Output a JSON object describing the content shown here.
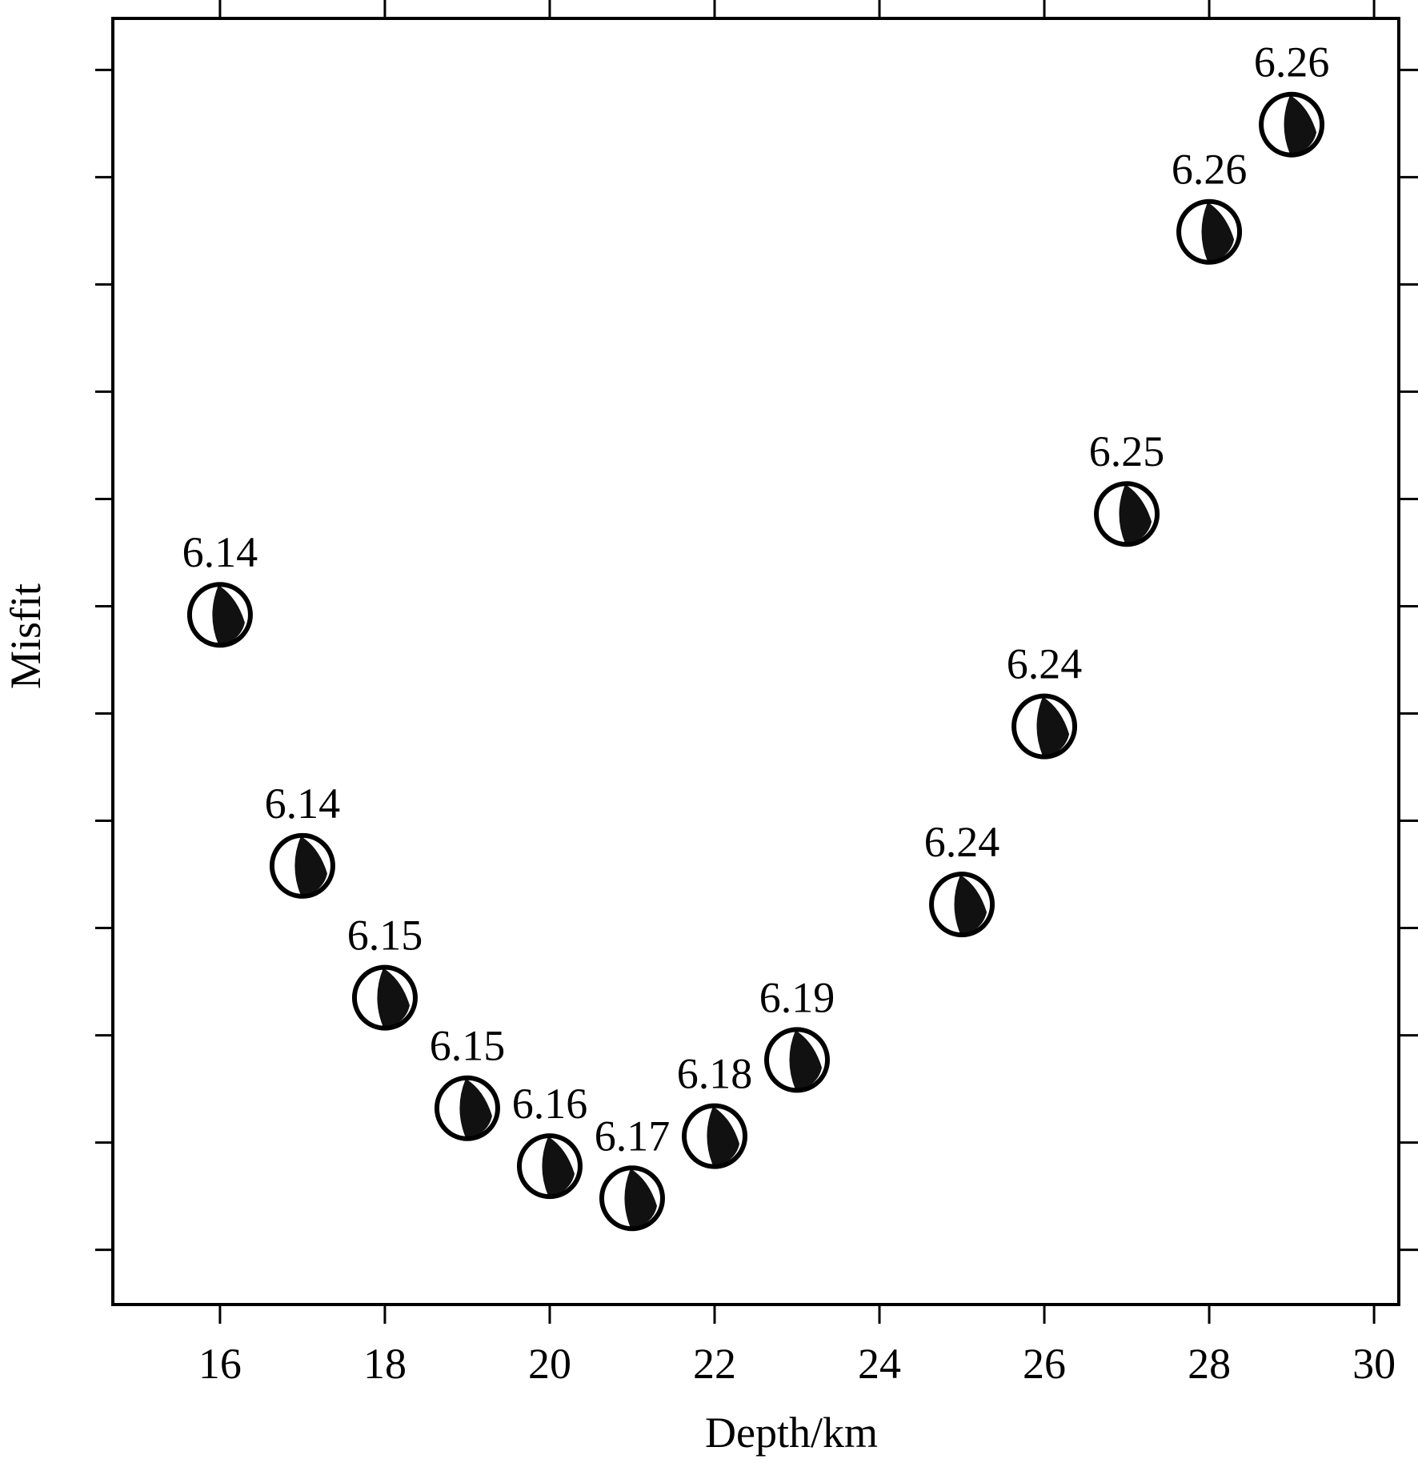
{
  "chart_data": {
    "type": "scatter",
    "title": "",
    "xlabel": "Depth/km",
    "ylabel": "Misfit",
    "xlim": [
      14.7,
      30.3
    ],
    "ylim": [
      -0.51,
      11.48
    ],
    "y_units_note": "relative misfit (unlabeled axis, tick units)",
    "xticks": [
      16,
      18,
      20,
      22,
      24,
      26,
      28,
      30
    ],
    "xtick_labels": [
      "16",
      "18",
      "20",
      "22",
      "24",
      "26",
      "28",
      "30"
    ],
    "yticks": [
      0,
      1,
      2,
      3,
      4,
      5,
      6,
      7,
      8,
      9,
      10,
      11
    ],
    "grid": false,
    "marker": "focal-mechanism-beachball",
    "fill_color": "#111111",
    "points": [
      {
        "x": 16,
        "y": 5.92,
        "label": "6.14"
      },
      {
        "x": 17,
        "y": 3.58,
        "label": "6.14"
      },
      {
        "x": 18,
        "y": 2.35,
        "label": "6.15"
      },
      {
        "x": 19,
        "y": 1.32,
        "label": "6.15"
      },
      {
        "x": 20,
        "y": 0.78,
        "label": "6.16"
      },
      {
        "x": 21,
        "y": 0.48,
        "label": "6.17"
      },
      {
        "x": 22,
        "y": 1.06,
        "label": "6.18"
      },
      {
        "x": 23,
        "y": 1.77,
        "label": "6.19"
      },
      {
        "x": 25,
        "y": 3.22,
        "label": "6.24"
      },
      {
        "x": 26,
        "y": 4.88,
        "label": "6.24"
      },
      {
        "x": 27,
        "y": 6.86,
        "label": "6.25"
      },
      {
        "x": 28,
        "y": 9.49,
        "label": "6.26"
      },
      {
        "x": 29,
        "y": 10.49,
        "label": "6.26"
      }
    ]
  }
}
